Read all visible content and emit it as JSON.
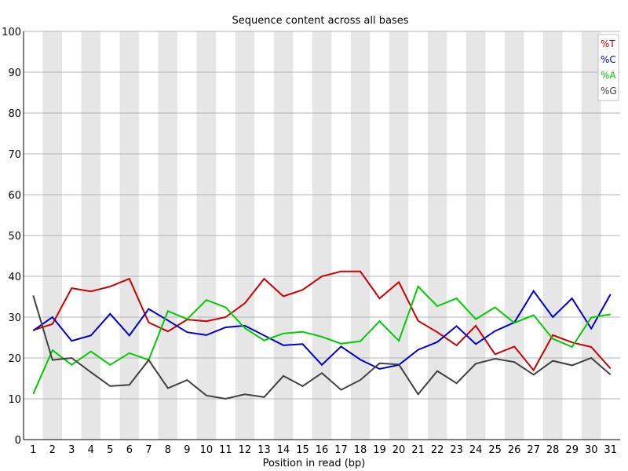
{
  "chart_data": {
    "type": "line",
    "title": "Sequence content across all bases",
    "xlabel": "Position in read (bp)",
    "ylabel": "",
    "ylim": [
      0,
      100
    ],
    "yticks": [
      0,
      10,
      20,
      30,
      40,
      50,
      60,
      70,
      80,
      90,
      100
    ],
    "categories": [
      "1",
      "2",
      "3",
      "4",
      "5",
      "6",
      "7",
      "8",
      "9",
      "10",
      "11",
      "12",
      "13",
      "14",
      "15",
      "16",
      "17",
      "18",
      "19",
      "20",
      "21",
      "22",
      "23",
      "24",
      "25",
      "26",
      "27",
      "28",
      "29",
      "30",
      "31"
    ],
    "grid": "horizontal",
    "alternating_column_shading": true,
    "legend_position": "top-right",
    "series": [
      {
        "name": "%T",
        "color": "#cc0000",
        "values": [
          26.8,
          28.3,
          37.1,
          36.3,
          37.5,
          39.4,
          28.7,
          26.5,
          29.4,
          29.0,
          30.0,
          33.4,
          39.4,
          35.1,
          36.7,
          40.0,
          41.2,
          41.2,
          34.6,
          38.6,
          29.1,
          26.3,
          23.1,
          27.9,
          20.9,
          22.8,
          17.0,
          25.6,
          23.8,
          22.7,
          17.4
        ]
      },
      {
        "name": "%C",
        "color": "#0000cc",
        "values": [
          26.7,
          30.0,
          24.2,
          25.5,
          30.8,
          25.5,
          32.0,
          29.2,
          26.3,
          25.6,
          27.5,
          27.9,
          25.5,
          23.1,
          23.4,
          18.3,
          22.8,
          19.6,
          17.3,
          18.3,
          22.0,
          23.9,
          27.8,
          23.4,
          26.6,
          28.7,
          36.4,
          30.0,
          34.6,
          27.2,
          35.6
        ]
      },
      {
        "name": "%A",
        "color": "#00cc00",
        "values": [
          11.2,
          21.9,
          18.3,
          21.6,
          18.3,
          21.2,
          19.5,
          31.5,
          29.5,
          34.2,
          32.4,
          27.3,
          24.3,
          26.0,
          26.4,
          25.2,
          23.5,
          24.1,
          29.0,
          24.2,
          37.5,
          32.7,
          34.6,
          29.5,
          32.4,
          28.6,
          30.5,
          24.7,
          22.7,
          29.9,
          30.7
        ]
      },
      {
        "name": "%G",
        "color": "#404040",
        "values": [
          35.3,
          19.5,
          20.0,
          16.5,
          13.1,
          13.4,
          19.5,
          12.6,
          14.6,
          10.8,
          10.0,
          11.1,
          10.4,
          15.6,
          13.1,
          16.3,
          12.2,
          14.6,
          18.7,
          18.4,
          11.1,
          16.8,
          13.8,
          18.6,
          19.8,
          19.0,
          15.9,
          19.3,
          18.2,
          20.0,
          15.9
        ]
      }
    ]
  }
}
